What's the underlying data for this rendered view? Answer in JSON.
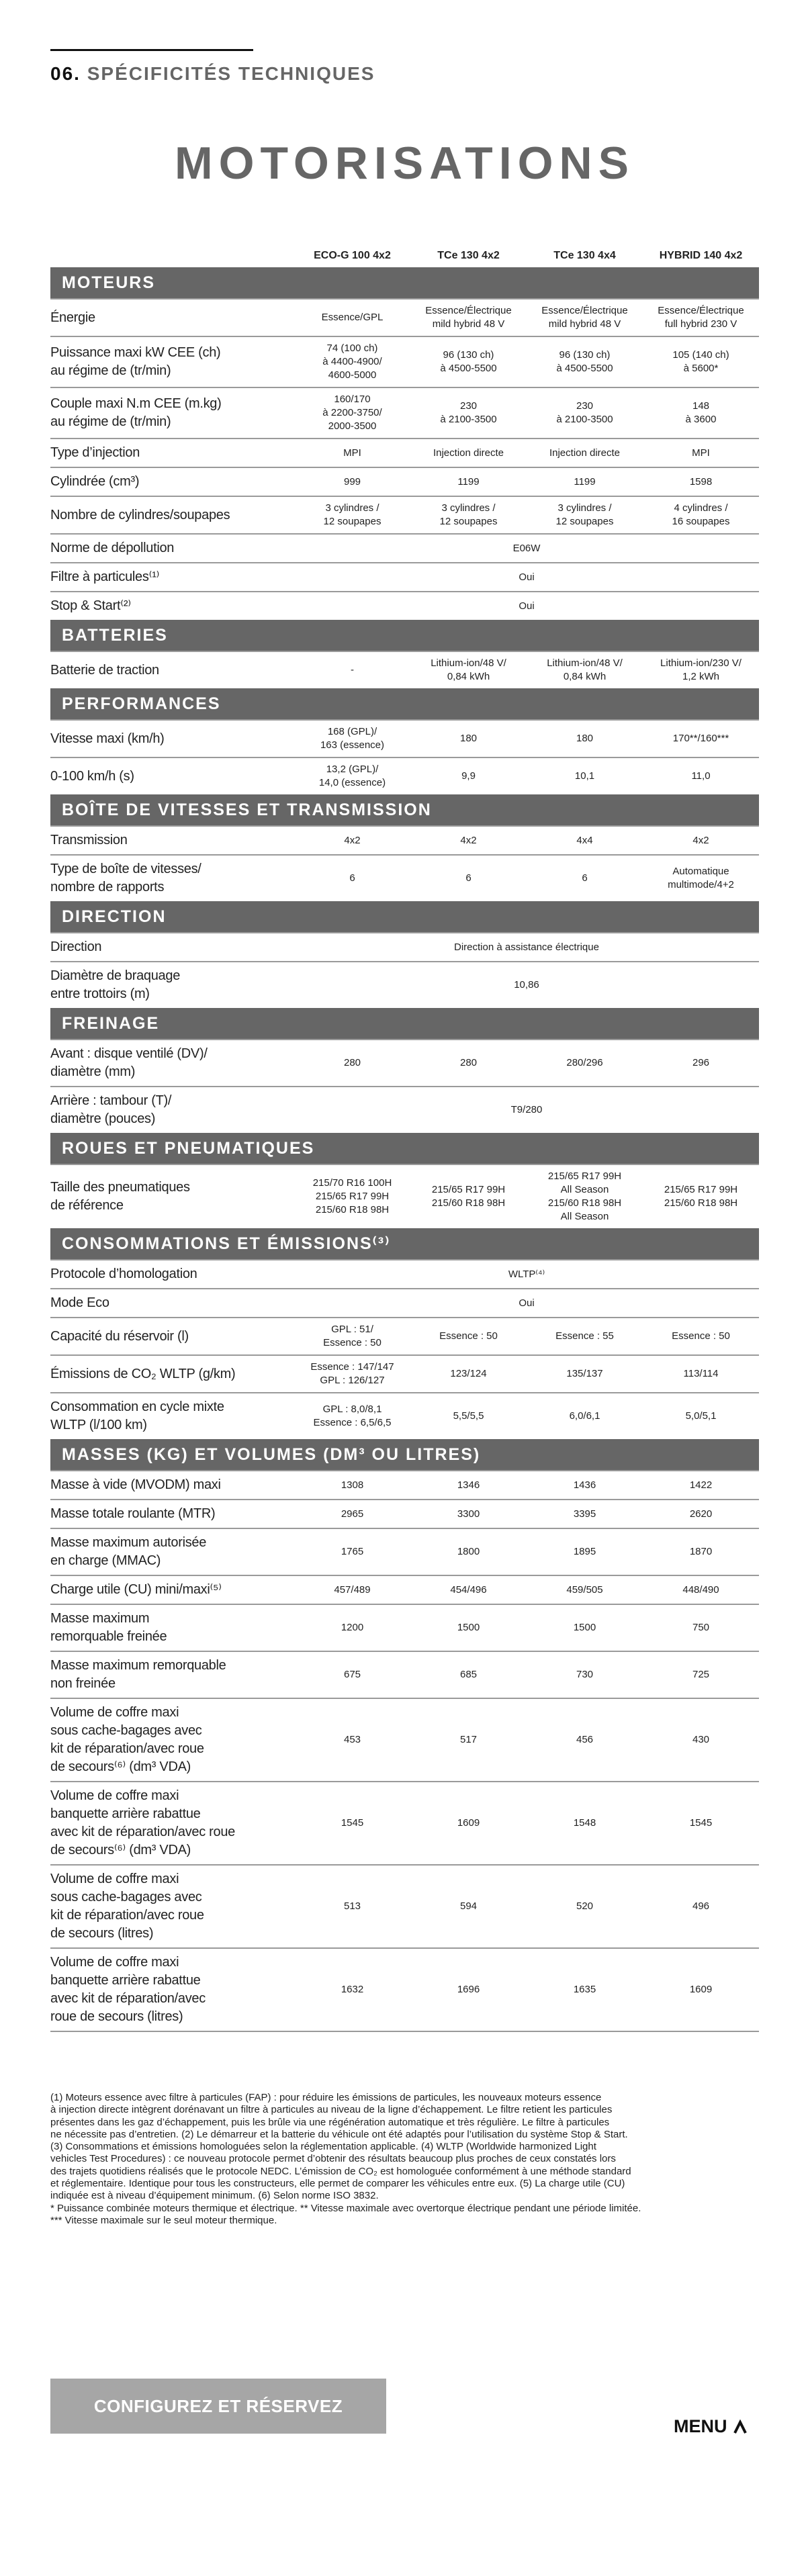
{
  "header": {
    "section_number": "06.",
    "section_title": "SPÉCIFICITÉS TECHNIQUES",
    "page_title": "MOTORISATIONS"
  },
  "columns": [
    "ECO-G 100 4x2",
    "TCe 130 4x2",
    "TCe 130 4x4",
    "HYBRID 140 4x2"
  ],
  "sections": [
    {
      "title": "MOTEURS",
      "rows": [
        {
          "label": "Énergie",
          "values": [
            "Essence/GPL",
            "Essence/Électrique\nmild hybrid 48 V",
            "Essence/Électrique\nmild hybrid 48 V",
            "Essence/Électrique\nfull hybrid 230 V"
          ]
        },
        {
          "label": "Puissance maxi kW CEE (ch)\nau régime de (tr/min)",
          "values": [
            "74 (100 ch)\nà 4400-4900/\n4600-5000",
            "96 (130 ch)\nà 4500-5500",
            "96 (130 ch)\nà 4500-5500",
            "105 (140 ch)\nà 5600*"
          ]
        },
        {
          "label": "Couple maxi N.m CEE (m.kg)\nau régime de (tr/min)",
          "values": [
            "160/170\nà 2200-3750/\n2000-3500",
            "230\nà 2100-3500",
            "230\nà 2100-3500",
            "148\nà 3600"
          ]
        },
        {
          "label": "Type d’injection",
          "values": [
            "MPI",
            "Injection directe",
            "Injection directe",
            "MPI"
          ]
        },
        {
          "label": "Cylindrée (cm³)",
          "values": [
            "999",
            "1199",
            "1199",
            "1598"
          ]
        },
        {
          "label": "Nombre de cylindres/soupapes",
          "values": [
            "3 cylindres /\n12 soupapes",
            "3 cylindres /\n12 soupapes",
            "3 cylindres /\n12 soupapes",
            "4 cylindres /\n16 soupapes"
          ]
        },
        {
          "label": "Norme de dépollution",
          "span": "E06W"
        },
        {
          "label": "Filtre à particules⁽¹⁾",
          "span": "Oui"
        },
        {
          "label": "Stop & Start⁽²⁾",
          "span": "Oui"
        }
      ]
    },
    {
      "title": "BATTERIES",
      "rows": [
        {
          "label": "Batterie de traction",
          "values": [
            "-",
            "Lithium-ion/48 V/\n0,84 kWh",
            "Lithium-ion/48 V/\n0,84 kWh",
            "Lithium-ion/230 V/\n1,2 kWh"
          ]
        }
      ]
    },
    {
      "title": "PERFORMANCES",
      "rows": [
        {
          "label": "Vitesse maxi (km/h)",
          "values": [
            "168 (GPL)/\n163 (essence)",
            "180",
            "180",
            "170**/160***"
          ]
        },
        {
          "label": "0-100 km/h (s)",
          "values": [
            "13,2 (GPL)/\n14,0 (essence)",
            "9,9",
            "10,1",
            "11,0"
          ]
        }
      ]
    },
    {
      "title": "BOÎTE DE VITESSES ET TRANSMISSION",
      "rows": [
        {
          "label": "Transmission",
          "values": [
            "4x2",
            "4x2",
            "4x4",
            "4x2"
          ]
        },
        {
          "label": "Type de boîte de vitesses/\nnombre de rapports",
          "values": [
            "6",
            "6",
            "6",
            "Automatique\nmultimode/4+2"
          ]
        }
      ]
    },
    {
      "title": "DIRECTION",
      "rows": [
        {
          "label": "Direction",
          "span": "Direction à assistance électrique"
        },
        {
          "label": "Diamètre de braquage\nentre trottoirs (m)",
          "span": "10,86"
        }
      ]
    },
    {
      "title": "FREINAGE",
      "rows": [
        {
          "label": "Avant : disque ventilé (DV)/\ndiamètre (mm)",
          "values": [
            "280",
            "280",
            "280/296",
            "296"
          ]
        },
        {
          "label": "Arrière : tambour (T)/\ndiamètre (pouces)",
          "span": "T9/280"
        }
      ]
    },
    {
      "title": "ROUES ET PNEUMATIQUES",
      "rows": [
        {
          "label": "Taille des pneumatiques\nde référence",
          "values": [
            "215/70 R16 100H\n215/65 R17 99H\n215/60 R18 98H",
            "215/65 R17 99H\n215/60 R18 98H",
            "215/65 R17 99H\nAll Season\n215/60 R18 98H\nAll Season",
            "215/65 R17 99H\n215/60 R18 98H"
          ]
        }
      ]
    },
    {
      "title": "CONSOMMATIONS ET ÉMISSIONS⁽³⁾",
      "rows": [
        {
          "label": "Protocole d’homologation",
          "span": "WLTP⁽⁴⁾"
        },
        {
          "label": "Mode Eco",
          "span": "Oui"
        },
        {
          "label": "Capacité du réservoir (l)",
          "values": [
            "GPL : 51/\nEssence : 50",
            "Essence : 50",
            "Essence : 55",
            "Essence : 50"
          ]
        },
        {
          "label": "Émissions de CO₂ WLTP (g/km)",
          "values": [
            "Essence : 147/147\nGPL : 126/127",
            "123/124",
            "135/137",
            "113/114"
          ]
        },
        {
          "label": "Consommation en cycle mixte\nWLTP (l/100 km)",
          "values": [
            "GPL : 8,0/8,1\nEssence : 6,5/6,5",
            "5,5/5,5",
            "6,0/6,1",
            "5,0/5,1"
          ]
        }
      ]
    },
    {
      "title": "MASSES (KG) ET VOLUMES (DM³ OU LITRES)",
      "rows": [
        {
          "label": "Masse à vide (MVODM) maxi",
          "values": [
            "1308",
            "1346",
            "1436",
            "1422"
          ]
        },
        {
          "label": "Masse totale roulante (MTR)",
          "values": [
            "2965",
            "3300",
            "3395",
            "2620"
          ]
        },
        {
          "label": "Masse maximum autorisée\nen charge (MMAC)",
          "values": [
            "1765",
            "1800",
            "1895",
            "1870"
          ]
        },
        {
          "label": "Charge utile (CU) mini/maxi⁽⁵⁾",
          "values": [
            "457/489",
            "454/496",
            "459/505",
            "448/490"
          ]
        },
        {
          "label": "Masse maximum\nremorquable freinée",
          "values": [
            "1200",
            "1500",
            "1500",
            "750"
          ]
        },
        {
          "label": "Masse maximum remorquable\nnon freinée",
          "values": [
            "675",
            "685",
            "730",
            "725"
          ]
        },
        {
          "label": "Volume de coffre maxi\nsous cache-bagages avec\nkit de réparation/avec roue\nde secours⁽⁶⁾ (dm³ VDA)",
          "values": [
            "453",
            "517",
            "456",
            "430"
          ]
        },
        {
          "label": "Volume de coffre maxi\nbanquette arrière rabattue\navec kit de réparation/avec roue\nde secours⁽⁶⁾ (dm³ VDA)",
          "values": [
            "1545",
            "1609",
            "1548",
            "1545"
          ]
        },
        {
          "label": "Volume de coffre maxi\nsous cache-bagages avec\nkit de réparation/avec roue\nde secours (litres)",
          "values": [
            "513",
            "594",
            "520",
            "496"
          ]
        },
        {
          "label": "Volume de coffre maxi\nbanquette arrière rabattue\navec kit de réparation/avec\nroue de secours (litres)",
          "values": [
            "1632",
            "1696",
            "1635",
            "1609"
          ]
        }
      ]
    }
  ],
  "footnotes": [
    "(1) Moteurs essence avec filtre à particules (FAP) : pour réduire les émissions de particules, les nouveaux moteurs essence",
    "à injection directe intègrent dorénavant un filtre à particules au niveau de la ligne d’échappement. Le filtre retient les particules",
    "présentes dans les gaz d’échappement, puis les brûle via une régénération automatique et très régulière. Le filtre à particules",
    "ne nécessite pas d’entretien. (2) Le démarreur et la batterie du véhicule ont été adaptés pour l’utilisation du système Stop & Start.",
    "(3) Consommations et émissions homologuées selon la réglementation applicable. (4) WLTP (Worldwide harmonized Light",
    "vehicles Test Procedures) : ce nouveau protocole permet d’obtenir des résultats beaucoup plus proches de ceux constatés lors",
    "des trajets quotidiens réalisés que le protocole NEDC. L’émission de CO₂ est homologuée conformément à une méthode standard",
    "et réglementaire. Identique pour tous les constructeurs, elle permet de comparer les véhicules entre eux. (5) La charge utile (CU)",
    "indiquée est à niveau d’équipement minimum. (6) Selon norme ISO 3832.",
    "* Puissance combinée moteurs thermique et électrique. ** Vitesse maximale avec overtorque électrique pendant une période limitée.",
    "*** Vitesse maximale sur le seul moteur thermique."
  ],
  "footer": {
    "cta_label": "CONFIGUREZ ET RÉSERVEZ",
    "menu_label": "MENU",
    "menu_icon": "chevron-up-icon"
  },
  "colors": {
    "section_bar": "#666666",
    "cta_background": "#a6a6a6",
    "title": "#666666"
  }
}
